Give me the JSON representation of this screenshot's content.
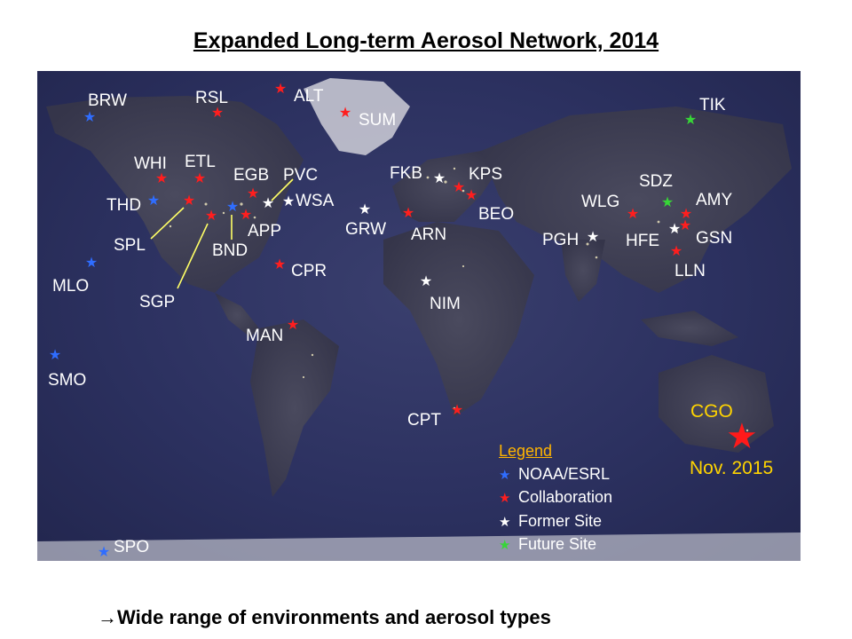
{
  "title": "Expanded Long-term Aerosol Network, 2014",
  "footer": {
    "arrow": "→",
    "text": "Wide range of environments and aerosol types"
  },
  "colors": {
    "noaa": "#2f6dff",
    "collab": "#ff1e1e",
    "former": "#ffffff",
    "future": "#37d637",
    "label": "#ffffff",
    "cgo": "#ffd400"
  },
  "legend": {
    "title": "Legend",
    "items": [
      {
        "label": "NOAA/ESRL",
        "color": "#2f6dff"
      },
      {
        "label": "Collaboration",
        "color": "#ff1e1e"
      },
      {
        "label": "Former Site",
        "color": "#ffffff"
      },
      {
        "label": "Future Site",
        "color": "#37d637"
      }
    ]
  },
  "cgo": {
    "label": "CGO",
    "note": "Nov. 2015"
  },
  "sites": {
    "brw": "BRW",
    "rsl": "RSL",
    "alt": "ALT",
    "sum": "SUM",
    "tik": "TIK",
    "whi": "WHI",
    "etl": "ETL",
    "egb": "EGB",
    "pvc": "PVC",
    "wsa": "WSA",
    "thd": "THD",
    "spl": "SPL",
    "bnd": "BND",
    "app": "APP",
    "sgp": "SGP",
    "cpr": "CPR",
    "mlo": "MLO",
    "smo": "SMO",
    "man": "MAN",
    "spo": "SPO",
    "fkb": "FKB",
    "kps": "KPS",
    "beo": "BEO",
    "grw": "GRW",
    "arn": "ARN",
    "nim": "NIM",
    "cpt": "CPT",
    "wlg": "WLG",
    "sdz": "SDZ",
    "amy": "AMY",
    "pgh": "PGH",
    "hfe": "HFE",
    "gsn": "GSN",
    "lln": "LLN"
  }
}
